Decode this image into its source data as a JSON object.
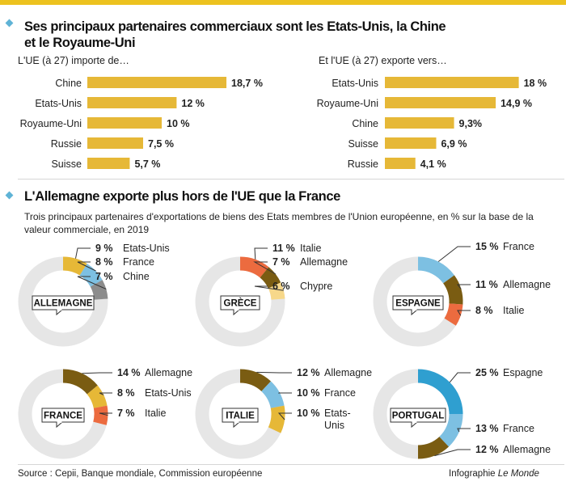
{
  "header": {
    "title1": "Ses principaux partenaires commerciaux sont les Etats-Unis, la Chine",
    "title1b": "et le Royaume-Uni",
    "import_label": "L'UE (à 27) importe de…",
    "export_label": "Et l'UE (à 27) exporte vers…"
  },
  "section2": {
    "title": "L'Allemagne exporte plus hors de l'UE que la France",
    "subtitle": "Trois principaux partenaires d'exportations de biens des Etats membres de l'Union européenne, en % sur la base de la valeur commerciale, en 2019"
  },
  "footer": {
    "source": "Source : Cepii, Banque mondiale, Commission européenne",
    "credit_prefix": "Infographie ",
    "credit_outlet": "Le Monde"
  },
  "colors": {
    "accent_bar": "#e6b837",
    "ring_bg": "#e6e6e6",
    "brown": "#7a5c12",
    "orange": "#ec6b3f",
    "light_yellow": "#f7d88a",
    "blue": "#7dc0e2",
    "dark_blue": "#2f9fd0",
    "grey": "#8c8c8c",
    "top_bar": "#ecc21f",
    "marker": "#5fb3d6"
  },
  "chart_data": [
    {
      "type": "bar",
      "orientation": "horizontal",
      "title": "L'UE (à 27) importe de…",
      "categories": [
        "Chine",
        "Etats-Unis",
        "Royaume-Uni",
        "Russie",
        "Suisse"
      ],
      "values": [
        18.7,
        12,
        10,
        7.5,
        5.7
      ],
      "value_labels": [
        "18,7 %",
        "12 %",
        "10 %",
        "7,5 %",
        "5,7 %"
      ],
      "unit": "%"
    },
    {
      "type": "bar",
      "orientation": "horizontal",
      "title": "Et l'UE (à 27) exporte vers…",
      "categories": [
        "Etats-Unis",
        "Royaume-Uni",
        "Chine",
        "Suisse",
        "Russie"
      ],
      "values": [
        18,
        14.9,
        9.3,
        6.9,
        4.1
      ],
      "value_labels": [
        "18 %",
        "14,9 %",
        "9,3%",
        "6,9 %",
        "4,1 %"
      ],
      "unit": "%"
    },
    {
      "type": "pie",
      "style": "donut",
      "country": "ALLEMAGNE",
      "slices": [
        {
          "value": 9,
          "pct_label": "9 %",
          "partner": "Etats-Unis",
          "color": "#e6b837"
        },
        {
          "value": 8,
          "pct_label": "8 %",
          "partner": "France",
          "color": "#7dc0e2"
        },
        {
          "value": 7,
          "pct_label": "7 %",
          "partner": "Chine",
          "color": "#8c8c8c"
        }
      ]
    },
    {
      "type": "pie",
      "style": "donut",
      "country": "GRÈCE",
      "slices": [
        {
          "value": 11,
          "pct_label": "11 %",
          "partner": "Italie",
          "color": "#ec6b3f"
        },
        {
          "value": 7,
          "pct_label": "7 %",
          "partner": "Allemagne",
          "color": "#7a5c12"
        },
        {
          "value": 6,
          "pct_label": "6 %",
          "partner": "Chypre",
          "color": "#f7d88a"
        }
      ]
    },
    {
      "type": "pie",
      "style": "donut",
      "country": "ESPAGNE",
      "slices": [
        {
          "value": 15,
          "pct_label": "15 %",
          "partner": "France",
          "color": "#7dc0e2"
        },
        {
          "value": 11,
          "pct_label": "11 %",
          "partner": "Allemagne",
          "color": "#7a5c12"
        },
        {
          "value": 8,
          "pct_label": "8 %",
          "partner": "Italie",
          "color": "#ec6b3f"
        }
      ]
    },
    {
      "type": "pie",
      "style": "donut",
      "country": "FRANCE",
      "slices": [
        {
          "value": 14,
          "pct_label": "14 %",
          "partner": "Allemagne",
          "color": "#7a5c12"
        },
        {
          "value": 8,
          "pct_label": "8 %",
          "partner": "Etats-Unis",
          "color": "#e6b837"
        },
        {
          "value": 7,
          "pct_label": "7 %",
          "partner": "Italie",
          "color": "#ec6b3f"
        }
      ]
    },
    {
      "type": "pie",
      "style": "donut",
      "country": "ITALIE",
      "slices": [
        {
          "value": 12,
          "pct_label": "12 %",
          "partner": "Allemagne",
          "color": "#7a5c12"
        },
        {
          "value": 10,
          "pct_label": "10 %",
          "partner": "France",
          "color": "#7dc0e2"
        },
        {
          "value": 10,
          "pct_label": "10 %",
          "partner": "Etats-Unis",
          "color": "#e6b837"
        }
      ]
    },
    {
      "type": "pie",
      "style": "donut",
      "country": "PORTUGAL",
      "slices": [
        {
          "value": 25,
          "pct_label": "25 %",
          "partner": "Espagne",
          "color": "#2f9fd0"
        },
        {
          "value": 13,
          "pct_label": "13 %",
          "partner": "France",
          "color": "#7dc0e2"
        },
        {
          "value": 12,
          "pct_label": "12 %",
          "partner": "Allemagne",
          "color": "#7a5c12"
        }
      ]
    }
  ]
}
